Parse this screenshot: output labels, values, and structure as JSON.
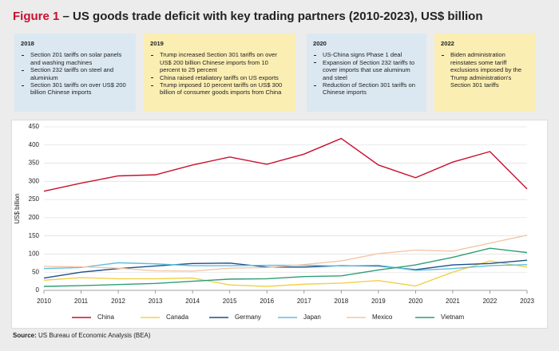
{
  "chart_data": {
    "type": "line",
    "title_label": "Figure 1",
    "title": "– US goods trade deficit with key trading partners (2010-2023), US$ billion",
    "annotations": [
      {
        "year": "2018",
        "items": [
          "Section 201 tariffs on solar panels and washing machines",
          "Section 232 tariffs on steel and aluminium",
          "Section 301 tariffs on over US$ 200 billion Chinese imports"
        ]
      },
      {
        "year": "2019",
        "items": [
          "Trump increased Section 301 tariffs on over US$ 200 billion Chinese imports from 10 percent to 25 percent",
          "China raised retaliatory tariffs on US exports",
          "Trump imposed 10 percent tariffs on US$ 300 billion of consumer goods imports from China"
        ]
      },
      {
        "year": "2020",
        "items": [
          "US-China signs Phase 1 deal",
          "Expansion of Section 232 tariffs to cover imports that use aluminum and steel",
          "Reduction of Section 301 tariffs on Chinese imports"
        ]
      },
      {
        "year": "2022",
        "items": [
          "Biden administration reinstates some tariff exclusions imposed by the Trump administration's Section 301 tariffs"
        ]
      }
    ],
    "y_label": "US$ billion",
    "x": [
      2010,
      2011,
      2012,
      2013,
      2014,
      2015,
      2016,
      2017,
      2018,
      2019,
      2020,
      2021,
      2022,
      2023
    ],
    "xlim": [
      2010,
      2023
    ],
    "xticks": [
      2010,
      2011,
      2012,
      2013,
      2014,
      2015,
      2016,
      2017,
      2018,
      2019,
      2020,
      2021,
      2022,
      2023
    ],
    "ylim": [
      0,
      450
    ],
    "yticks": [
      0,
      50,
      100,
      150,
      200,
      250,
      300,
      350,
      400,
      450
    ],
    "grid": true,
    "series": [
      {
        "name": "China",
        "color": "#c8102e",
        "values": [
          273,
          295,
          315,
          318,
          345,
          367,
          347,
          375,
          418,
          345,
          310,
          353,
          382,
          279
        ]
      },
      {
        "name": "Canada",
        "color": "#f2d04a",
        "values": [
          28,
          35,
          32,
          32,
          34,
          15,
          11,
          17,
          20,
          27,
          12,
          50,
          81,
          64
        ]
      },
      {
        "name": "Germany",
        "color": "#1f4e8c",
        "values": [
          34,
          50,
          60,
          67,
          74,
          75,
          64,
          64,
          68,
          67,
          57,
          70,
          74,
          83
        ]
      },
      {
        "name": "Japan",
        "color": "#5bc0de",
        "values": [
          60,
          63,
          76,
          73,
          68,
          68,
          69,
          69,
          67,
          69,
          55,
          60,
          68,
          71
        ]
      },
      {
        "name": "Mexico",
        "color": "#f4c6a5",
        "values": [
          66,
          65,
          61,
          54,
          53,
          61,
          63,
          71,
          81,
          101,
          111,
          108,
          130,
          152
        ]
      },
      {
        "name": "Vietnam",
        "color": "#2e9e74",
        "values": [
          11,
          13,
          16,
          19,
          25,
          31,
          32,
          38,
          40,
          56,
          70,
          91,
          116,
          104
        ]
      }
    ],
    "source_label": "Source:",
    "source": "US Bureau of Economic Analysis (BEA)"
  }
}
